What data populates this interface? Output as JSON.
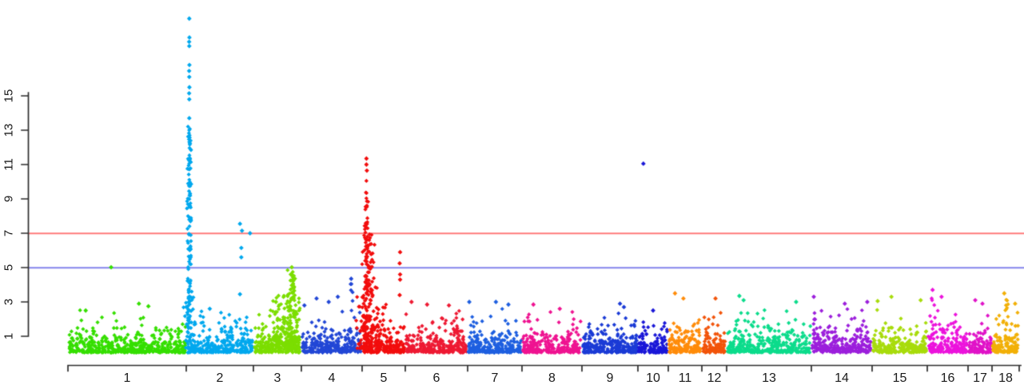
{
  "chart_data": {
    "type": "scatter",
    "subtype": "manhattan",
    "title": "",
    "xlabel": "",
    "ylabel": "",
    "background": "#FFFFFF",
    "axis_color": "#2E2E2E",
    "point_shape": "diamond",
    "y_axis": {
      "ticks": [
        1,
        3,
        5,
        7,
        9,
        11,
        13,
        15
      ],
      "range": [
        0,
        20
      ]
    },
    "x_axis": {
      "tick_labels": [
        "1",
        "2",
        "3",
        "4",
        "5",
        "6",
        "7",
        "8",
        "9",
        "10",
        "11",
        "12",
        "13",
        "14",
        "15",
        "16",
        "17",
        "18"
      ]
    },
    "thresholds": [
      {
        "name": "genome-wide-line",
        "value": 7,
        "color": "#FF7B7B"
      },
      {
        "name": "suggestive-line",
        "value": 5,
        "color": "#8484EC"
      }
    ],
    "chromosomes": [
      {
        "label": "1",
        "color": "#35DF00",
        "width": 148,
        "n": 480,
        "cap": 2.6,
        "peaks": [],
        "outliers": [
          [
            0.365,
            5.02
          ],
          [
            0.6,
            2.9
          ],
          [
            0.15,
            2.5
          ],
          [
            0.68,
            2.75
          ]
        ]
      },
      {
        "label": "2",
        "color": "#00A8EE",
        "width": 84,
        "n": 270,
        "cap": 2.5,
        "peaks": [
          [
            0.045,
            2.6,
            150,
            13.4,
            1.15
          ]
        ],
        "outliers": [
          [
            0.045,
            19.5
          ],
          [
            0.047,
            18.4
          ],
          [
            0.043,
            18.15
          ],
          [
            0.045,
            17.9
          ],
          [
            0.047,
            16.8
          ],
          [
            0.043,
            16.45
          ],
          [
            0.045,
            16.1
          ],
          [
            0.047,
            15.5
          ],
          [
            0.043,
            15.15
          ],
          [
            0.045,
            14.8
          ],
          [
            0.045,
            13.7
          ],
          [
            0.8,
            7.55
          ],
          [
            0.83,
            7.15
          ],
          [
            0.95,
            7.0
          ],
          [
            0.82,
            6.15
          ],
          [
            0.82,
            5.6
          ],
          [
            0.8,
            3.45
          ],
          [
            0.35,
            2.6
          ]
        ]
      },
      {
        "label": "3",
        "color": "#7CDE00",
        "width": 60,
        "n": 210,
        "cap": 2.6,
        "peaks": [
          [
            0.8,
            4.5,
            100,
            4.9,
            1.5
          ],
          [
            0.66,
            9,
            110,
            3.4,
            1.7
          ]
        ],
        "outliers": [
          [
            0.8,
            5.02
          ],
          [
            0.78,
            4.6
          ],
          [
            0.82,
            4.3
          ],
          [
            0.47,
            3.0
          ]
        ]
      },
      {
        "label": "4",
        "color": "#2247D6",
        "width": 76,
        "n": 260,
        "cap": 2.7,
        "peaks": [
          [
            0.82,
            1.8,
            14,
            4.1,
            1.2
          ]
        ],
        "outliers": [
          [
            0.82,
            4.35
          ],
          [
            0.25,
            3.2
          ],
          [
            0.45,
            3.0
          ],
          [
            0.6,
            3.3
          ],
          [
            0.05,
            2.8
          ]
        ]
      },
      {
        "label": "5",
        "color": "#F20D0D",
        "width": 54,
        "n": 190,
        "cap": 2.8,
        "peaks": [
          [
            0.1,
            2.4,
            85,
            10.2,
            1.45
          ],
          [
            0.15,
            9,
            170,
            7.0,
            1.9
          ]
        ],
        "outliers": [
          [
            0.1,
            11.35
          ],
          [
            0.1,
            11.0
          ],
          [
            0.11,
            10.65
          ],
          [
            0.88,
            5.9
          ],
          [
            0.87,
            5.25
          ],
          [
            0.88,
            4.6
          ],
          [
            0.88,
            4.3
          ],
          [
            0.87,
            3.4
          ]
        ]
      },
      {
        "label": "6",
        "color": "#EE1A33",
        "width": 78,
        "n": 270,
        "cap": 2.5,
        "peaks": [],
        "outliers": [
          [
            0.1,
            3.0
          ],
          [
            0.35,
            2.85
          ],
          [
            0.7,
            2.8
          ]
        ]
      },
      {
        "label": "7",
        "color": "#1E5FE0",
        "width": 68,
        "n": 240,
        "cap": 2.6,
        "peaks": [],
        "outliers": [
          [
            0.03,
            3.0
          ],
          [
            0.52,
            3.0
          ],
          [
            0.75,
            2.85
          ]
        ]
      },
      {
        "label": "8",
        "color": "#EF1391",
        "width": 75,
        "n": 255,
        "cap": 2.6,
        "peaks": [],
        "outliers": [
          [
            0.19,
            2.85
          ],
          [
            0.63,
            2.6
          ]
        ]
      },
      {
        "label": "9",
        "color": "#1B3BD6",
        "width": 70,
        "n": 245,
        "cap": 2.5,
        "peaks": [],
        "outliers": [
          [
            0.68,
            2.9
          ],
          [
            0.75,
            2.7
          ]
        ]
      },
      {
        "label": "10",
        "color": "#1A17D8",
        "width": 38,
        "n": 132,
        "cap": 2.3,
        "peaks": [],
        "outliers": [
          [
            0.18,
            11.05
          ],
          [
            0.5,
            2.5
          ]
        ]
      },
      {
        "label": "11",
        "color": "#FF8C0A",
        "width": 42,
        "n": 150,
        "cap": 2.8,
        "peaks": [],
        "outliers": [
          [
            0.2,
            3.5
          ],
          [
            0.45,
            3.2
          ]
        ]
      },
      {
        "label": "12",
        "color": "#F2540A",
        "width": 31,
        "n": 110,
        "cap": 2.7,
        "peaks": [],
        "outliers": [
          [
            0.55,
            3.2
          ]
        ]
      },
      {
        "label": "13",
        "color": "#0CDC8C",
        "width": 106,
        "n": 360,
        "cap": 2.8,
        "peaks": [],
        "outliers": [
          [
            0.15,
            3.35
          ],
          [
            0.2,
            3.1
          ],
          [
            0.82,
            3.0
          ]
        ]
      },
      {
        "label": "14",
        "color": "#9C1FDC",
        "width": 76,
        "n": 260,
        "cap": 2.6,
        "peaks": [
          [
            0.05,
            1.5,
            12,
            3.0,
            1.2
          ]
        ],
        "outliers": [
          [
            0.04,
            3.3
          ],
          [
            0.55,
            2.9
          ],
          [
            0.92,
            3.0
          ]
        ]
      },
      {
        "label": "15",
        "color": "#A8DC0C",
        "width": 69,
        "n": 240,
        "cap": 2.7,
        "peaks": [],
        "outliers": [
          [
            0.35,
            3.3
          ],
          [
            0.1,
            3.05
          ],
          [
            0.88,
            3.1
          ]
        ]
      },
      {
        "label": "16",
        "color": "#EC13DC",
        "width": 51,
        "n": 180,
        "cap": 2.8,
        "peaks": [
          [
            0.13,
            1.5,
            10,
            3.3,
            1.2
          ]
        ],
        "outliers": [
          [
            0.13,
            3.7
          ],
          [
            0.35,
            3.3
          ]
        ]
      },
      {
        "label": "17",
        "color": "#E013C8",
        "width": 30,
        "n": 108,
        "cap": 2.6,
        "peaks": [],
        "outliers": [
          [
            0.3,
            3.1
          ],
          [
            0.6,
            2.9
          ]
        ]
      },
      {
        "label": "18",
        "color": "#F2B007",
        "width": 34,
        "n": 125,
        "cap": 2.7,
        "peaks": [
          [
            0.5,
            2,
            12,
            3.2,
            1.3
          ]
        ],
        "outliers": [
          [
            0.45,
            3.5
          ],
          [
            0.85,
            2.9
          ]
        ]
      }
    ]
  }
}
